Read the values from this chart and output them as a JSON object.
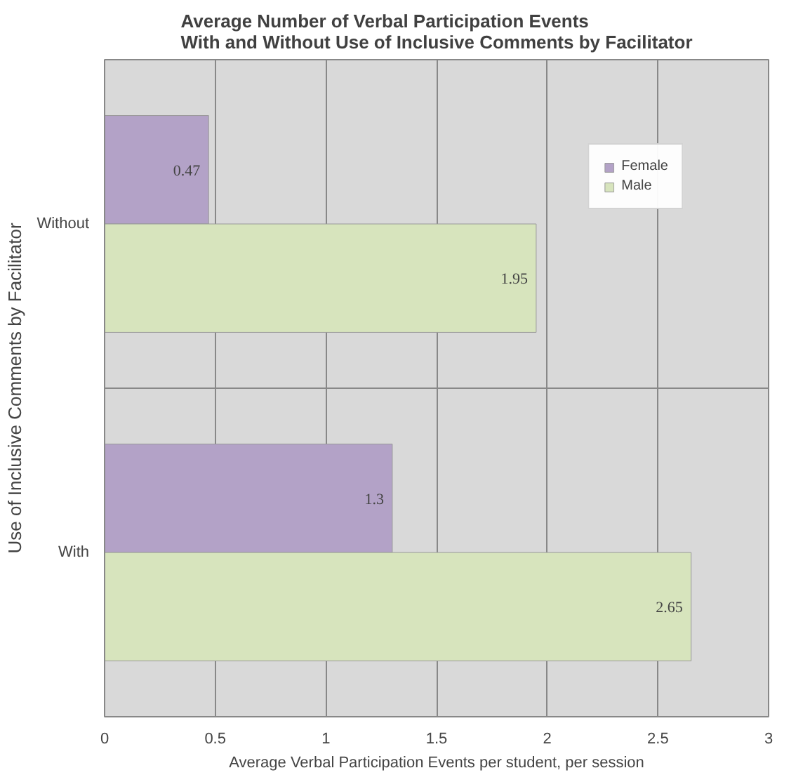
{
  "chart_data": {
    "type": "bar",
    "orientation": "horizontal",
    "title": "Average Number of Verbal Participation Events\nWith and Without Use of Inclusive Comments by Facilitator",
    "xlabel": "Average Verbal Participation Events per student, per session",
    "ylabel": "Use of Inclusive Comments by Facilitator",
    "categories": [
      "Without",
      "With"
    ],
    "series": [
      {
        "name": "Female",
        "color": "#b3a2c7",
        "values": [
          0.47,
          1.3
        ]
      },
      {
        "name": "Male",
        "color": "#d7e4bd",
        "values": [
          1.95,
          2.65
        ]
      }
    ],
    "xlim": [
      0,
      3
    ],
    "xticks": [
      0,
      0.5,
      1,
      1.5,
      2,
      2.5,
      3
    ],
    "grid": true,
    "legend": "top right",
    "data_labels": true
  }
}
